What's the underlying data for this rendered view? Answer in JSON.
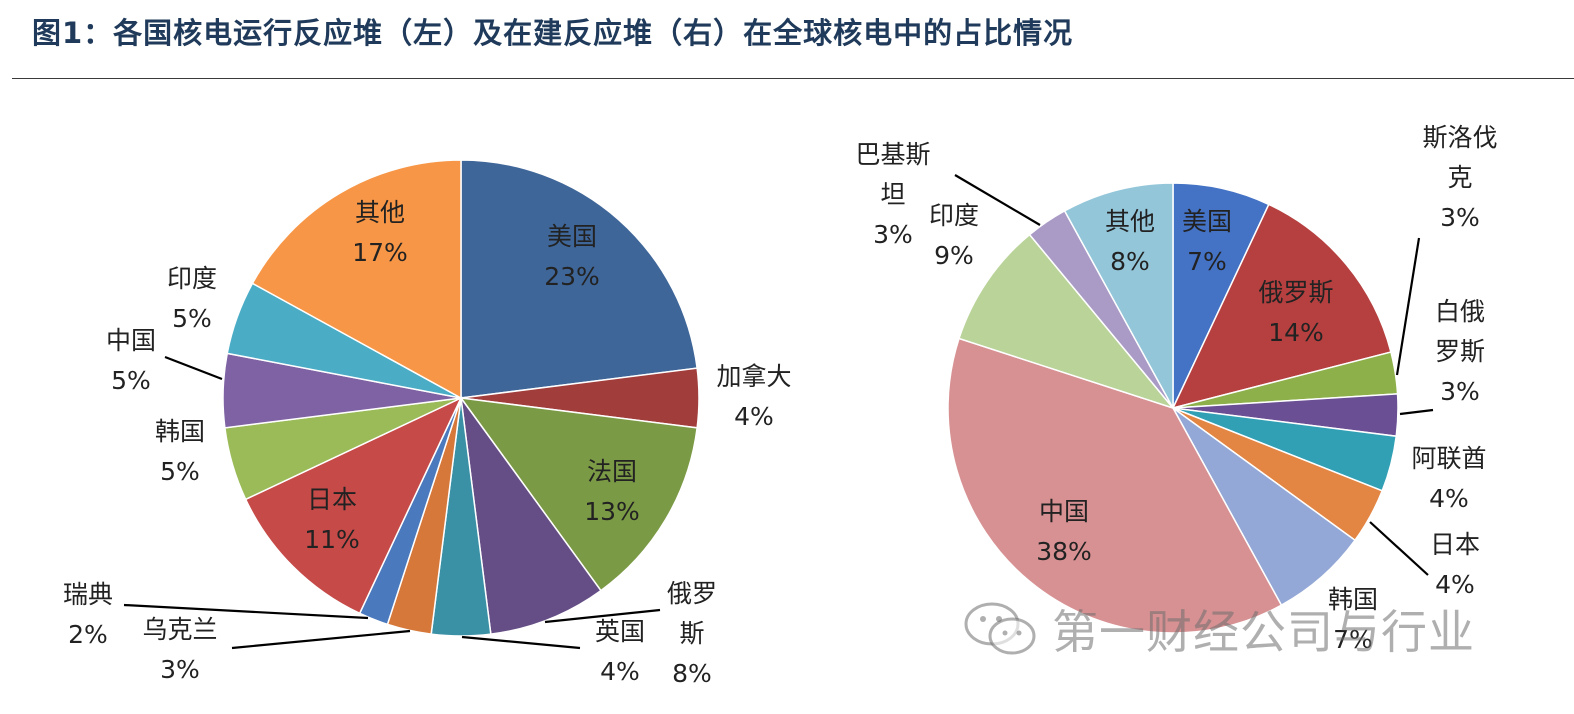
{
  "figure": {
    "title": "图1：各国核电运行反应堆（左）及在建反应堆（右）在全球核电中的占比情况",
    "watermark": "第一财经公司与行业"
  },
  "chart_data": [
    {
      "type": "pie",
      "title": "",
      "start_angle_deg": 0,
      "direction": "clockwise",
      "slices": [
        {
          "label_lines": [
            "美国"
          ],
          "value": 23,
          "pct": "23%",
          "color": "#3f6699"
        },
        {
          "label_lines": [
            "加拿大"
          ],
          "value": 4,
          "pct": "4%",
          "color": "#a13d3b"
        },
        {
          "label_lines": [
            "法国"
          ],
          "value": 13,
          "pct": "13%",
          "color": "#7b9a45"
        },
        {
          "label_lines": [
            "俄罗",
            "斯"
          ],
          "value": 8,
          "pct": "8%",
          "color": "#654e86"
        },
        {
          "label_lines": [
            "英国"
          ],
          "value": 4,
          "pct": "4%",
          "color": "#3a90a5"
        },
        {
          "label_lines": [
            "乌克兰"
          ],
          "value": 3,
          "pct": "3%",
          "color": "#d6783a"
        },
        {
          "label_lines": [
            "瑞典"
          ],
          "value": 2,
          "pct": "2%",
          "color": "#4b79bd"
        },
        {
          "label_lines": [
            "日本"
          ],
          "value": 11,
          "pct": "11%",
          "color": "#c54a48"
        },
        {
          "label_lines": [
            "韩国"
          ],
          "value": 5,
          "pct": "5%",
          "color": "#9bbb59"
        },
        {
          "label_lines": [
            "中国"
          ],
          "value": 5,
          "pct": "5%",
          "color": "#7e62a3"
        },
        {
          "label_lines": [
            "印度"
          ],
          "value": 5,
          "pct": "5%",
          "color": "#4bacc6"
        },
        {
          "label_lines": [
            "其他"
          ],
          "value": 17,
          "pct": "17%",
          "color": "#f79646"
        }
      ]
    },
    {
      "type": "pie",
      "title": "",
      "start_angle_deg": 0,
      "direction": "clockwise",
      "slices": [
        {
          "label_lines": [
            "美国"
          ],
          "value": 7,
          "pct": "7%",
          "color": "#4472c4"
        },
        {
          "label_lines": [
            "俄罗斯"
          ],
          "value": 14,
          "pct": "14%",
          "color": "#b5403f"
        },
        {
          "label_lines": [
            "斯洛伐",
            "克"
          ],
          "value": 3,
          "pct": "3%",
          "color": "#8db04a"
        },
        {
          "label_lines": [
            "白俄",
            "罗斯"
          ],
          "value": 3,
          "pct": "3%",
          "color": "#6a4f94"
        },
        {
          "label_lines": [
            "阿联酋"
          ],
          "value": 4,
          "pct": "4%",
          "color": "#31a0b5"
        },
        {
          "label_lines": [
            "日本"
          ],
          "value": 4,
          "pct": "4%",
          "color": "#e38543"
        },
        {
          "label_lines": [
            "韩国"
          ],
          "value": 7,
          "pct": "7%",
          "color": "#93a8d6"
        },
        {
          "label_lines": [
            "中国"
          ],
          "value": 38,
          "pct": "38%",
          "color": "#d79193"
        },
        {
          "label_lines": [
            "印度"
          ],
          "value": 9,
          "pct": "9%",
          "color": "#b9d399"
        },
        {
          "label_lines": [
            "巴基斯",
            "坦"
          ],
          "value": 3,
          "pct": "3%",
          "color": "#a99bc6"
        },
        {
          "label_lines": [
            "其他"
          ],
          "value": 8,
          "pct": "8%",
          "color": "#93c6d9"
        }
      ]
    }
  ]
}
